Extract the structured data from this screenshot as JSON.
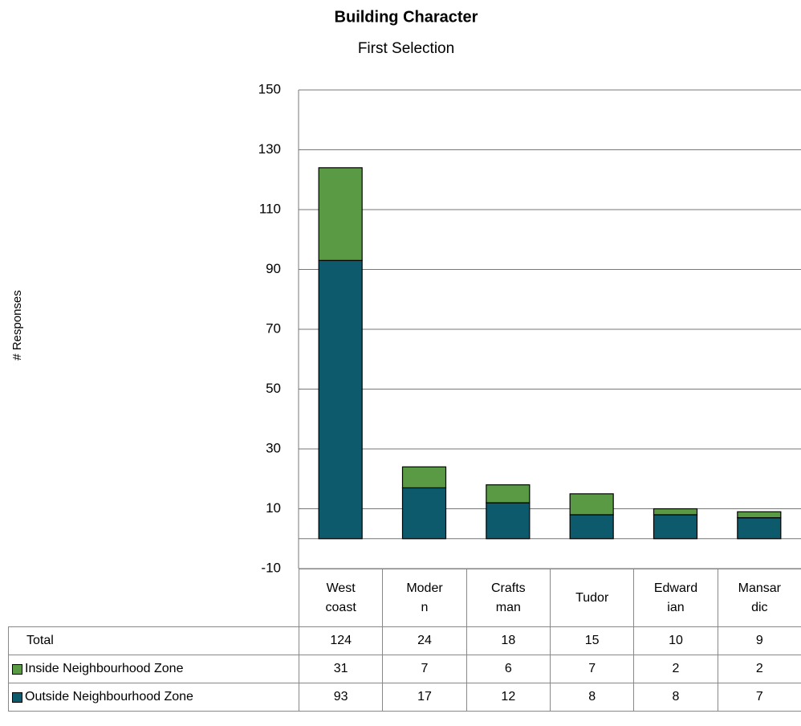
{
  "chart_data": {
    "type": "stacked_bar",
    "title": "Building Character",
    "subtitle": "First Selection",
    "y_label": "# Responses",
    "categories": [
      "West\ncoast",
      "Moder\nn",
      "Crafts\nman",
      "Tudor",
      "Edward\nian",
      "Mansar\ndic"
    ],
    "series": [
      {
        "name": "Outside Neighbourhood Zone",
        "color": "#0c5a6c",
        "values": [
          93,
          17,
          12,
          8,
          8,
          7
        ]
      },
      {
        "name": "Inside Neighbourhood Zone",
        "color": "#5a9a44",
        "values": [
          31,
          7,
          6,
          7,
          2,
          2
        ]
      }
    ],
    "total_label": "Total",
    "totals": [
      124,
      24,
      18,
      15,
      10,
      9
    ],
    "ylim": [
      -10,
      150
    ],
    "yticks": [
      150,
      130,
      110,
      90,
      70,
      50,
      30,
      10,
      -10
    ],
    "grid": true
  }
}
